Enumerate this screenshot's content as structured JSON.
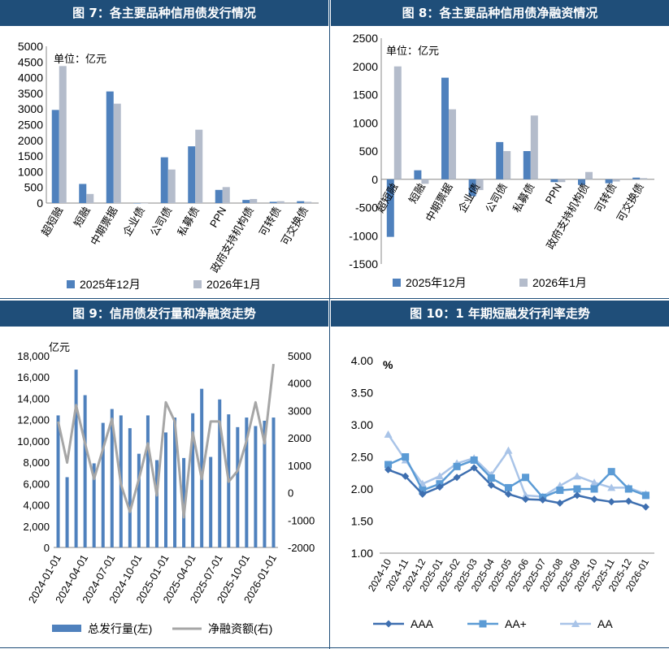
{
  "colors": {
    "header_bg": "#1f4e79",
    "header_text": "#ffffff",
    "series_blue": "#4f81bd",
    "series_gray": "#b4bccb",
    "line_gray": "#a6a6a6",
    "aaa": "#3e6fb0",
    "aaplus": "#5b9bd5",
    "aa": "#a9c4e8"
  },
  "panels": [
    {
      "title": "图 7：各主要品种信用债发行情况"
    },
    {
      "title": "图 8：各主要品种信用债净融资情况"
    },
    {
      "title": "图 9：信用债发行量和净融资走势"
    },
    {
      "title": "图 10：1 年期短融发行利率走势"
    }
  ],
  "chart_data": [
    {
      "type": "bar",
      "unit_label": "单位：亿元",
      "categories": [
        "超短融",
        "短融",
        "中期票据",
        "企业债",
        "公司债",
        "私募债",
        "PPN",
        "政府支持机构债",
        "可转债",
        "可交换债"
      ],
      "series": [
        {
          "name": "2025年12月",
          "values": [
            2970,
            610,
            3560,
            0,
            1460,
            1810,
            420,
            100,
            40,
            60
          ]
        },
        {
          "name": "2026年1月",
          "values": [
            4370,
            290,
            3170,
            0,
            1070,
            2340,
            510,
            130,
            60,
            40
          ]
        }
      ],
      "ylim": [
        0,
        5000
      ],
      "yticks": [
        0,
        500,
        1000,
        1500,
        2000,
        2500,
        3000,
        3500,
        4000,
        4500,
        5000
      ]
    },
    {
      "type": "bar",
      "unit_label": "单位：亿元",
      "categories": [
        "超短融",
        "短融",
        "中期票据",
        "企业债",
        "公司债",
        "私募债",
        "PPN",
        "政府支持机构债",
        "可转债",
        "可交换债"
      ],
      "series": [
        {
          "name": "2025年12月",
          "values": [
            -1020,
            160,
            1800,
            -300,
            660,
            500,
            -50,
            -100,
            -70,
            30
          ]
        },
        {
          "name": "2026年1月",
          "values": [
            2000,
            -80,
            1240,
            -190,
            500,
            1130,
            -50,
            130,
            -40,
            20
          ]
        }
      ],
      "ylim": [
        -1500,
        2500
      ],
      "yticks": [
        -1500,
        -1000,
        -500,
        0,
        500,
        1000,
        1500,
        2000,
        2500
      ]
    },
    {
      "type": "bar+line",
      "left_unit": "亿元",
      "x_labels": [
        "2024-01-01",
        "2024-04-01",
        "2024-07-01",
        "2024-10-01",
        "2025-01-01",
        "2025-04-01",
        "2025-07-01",
        "2025-10-01",
        "2026-01-01"
      ],
      "series": [
        {
          "name": "总发行量(左)",
          "axis": "left",
          "values": [
            12400,
            6600,
            16700,
            14300,
            7900,
            11700,
            13000,
            12400,
            11200,
            8800,
            12400,
            8200,
            10800,
            12200,
            8400,
            12600,
            14900,
            8500,
            13900,
            12500,
            11300,
            12200,
            11400,
            11900,
            12200
          ]
        },
        {
          "name": "净融资额(右)",
          "axis": "right",
          "values": [
            2600,
            1100,
            3200,
            1800,
            500,
            1600,
            2700,
            300,
            -700,
            500,
            1800,
            -100,
            3300,
            2600,
            -900,
            2200,
            500,
            2600,
            2600,
            400,
            800,
            1900,
            3300,
            1800,
            4700
          ]
        }
      ],
      "ylim_left": [
        0,
        18000
      ],
      "yticks_left": [
        0,
        2000,
        4000,
        6000,
        8000,
        10000,
        12000,
        14000,
        16000,
        18000
      ],
      "ylim_right": [
        -2000,
        5000
      ],
      "yticks_right": [
        -2000,
        -1000,
        0,
        1000,
        2000,
        3000,
        4000,
        5000
      ]
    },
    {
      "type": "line",
      "ylabel": "%",
      "x": [
        "2024-10",
        "2024-11",
        "2024-12",
        "2025-01",
        "2025-02",
        "2025-03",
        "2025-04",
        "2025-05",
        "2025-06",
        "2025-07",
        "2025-08",
        "2025-09",
        "2025-10",
        "2025-11",
        "2025-12",
        "2026-01"
      ],
      "series": [
        {
          "name": "AAA",
          "values": [
            2.3,
            2.2,
            1.92,
            2.03,
            2.18,
            2.33,
            2.06,
            1.92,
            1.84,
            1.83,
            1.78,
            1.9,
            1.84,
            1.8,
            1.81,
            1.72
          ]
        },
        {
          "name": "AA+",
          "values": [
            2.38,
            2.5,
            1.98,
            2.08,
            2.35,
            2.45,
            2.17,
            2.02,
            2.18,
            1.87,
            1.98,
            2.0,
            2.0,
            2.27,
            2.0,
            1.9
          ]
        },
        {
          "name": "AA",
          "values": [
            2.85,
            2.45,
            2.08,
            2.2,
            2.4,
            2.48,
            2.22,
            2.6,
            1.9,
            1.88,
            2.05,
            2.2,
            2.1,
            2.02,
            2.02,
            1.92
          ]
        }
      ],
      "ylim": [
        1.0,
        4.0
      ],
      "yticks": [
        "1.00",
        "1.50",
        "2.00",
        "2.50",
        "3.00",
        "3.50",
        "4.00"
      ]
    }
  ]
}
